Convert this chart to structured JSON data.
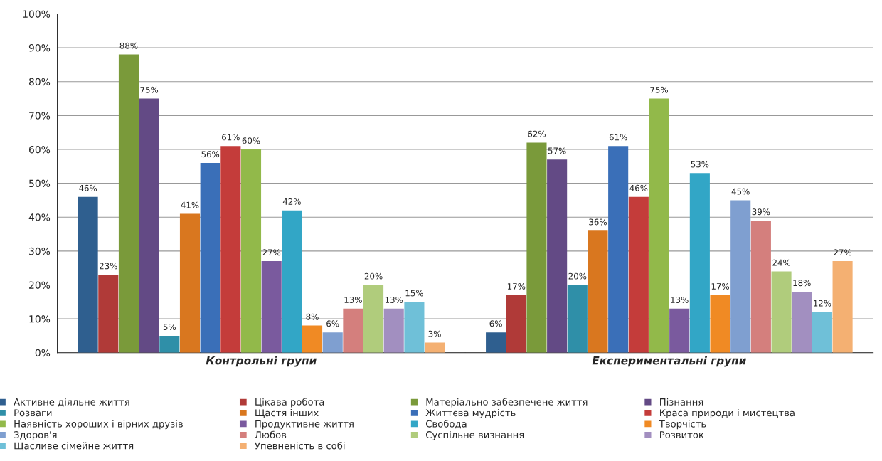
{
  "chart_data": {
    "type": "bar",
    "categories": [
      "Контрольні групи",
      "Експериментальні групи"
    ],
    "series": [
      {
        "name": "Активне діяльне життя",
        "color": "#2f5f8f",
        "values": [
          46,
          6
        ],
        "value_labels": [
          "46%",
          "6%"
        ]
      },
      {
        "name": "Цікава робота",
        "color": "#b03a38",
        "values": [
          23,
          17
        ],
        "value_labels": [
          "23%",
          "17%"
        ]
      },
      {
        "name": "Матеріально забезпечене життя",
        "color": "#7a9a3a",
        "values": [
          88,
          62
        ],
        "value_labels": [
          "88%",
          "62%"
        ]
      },
      {
        "name": "Пізнання",
        "color": "#634a85",
        "values": [
          75,
          57
        ],
        "value_labels": [
          "75%",
          "57%"
        ]
      },
      {
        "name": "Розваги",
        "color": "#2f8fa8",
        "values": [
          5,
          20
        ],
        "value_labels": [
          "5%",
          "20%"
        ]
      },
      {
        "name": "Щастя інших",
        "color": "#d9771f",
        "values": [
          41,
          36
        ],
        "value_labels": [
          "41%",
          "36%"
        ]
      },
      {
        "name": "Життєва мудрість",
        "color": "#3a6fb8",
        "values": [
          56,
          61
        ],
        "value_labels": [
          "56%",
          "61%"
        ]
      },
      {
        "name": "Краса природи і мистецтва",
        "color": "#c43c3a",
        "values": [
          61,
          46
        ],
        "value_labels": [
          "61%",
          "46%"
        ]
      },
      {
        "name": "Наявність хороших і вірних друзів",
        "color": "#92b94a",
        "values": [
          60,
          75
        ],
        "value_labels": [
          "60%",
          "75%"
        ]
      },
      {
        "name": "Продуктивне життя",
        "color": "#7a5a9e",
        "values": [
          27,
          13
        ],
        "value_labels": [
          "27%",
          "13%"
        ]
      },
      {
        "name": "Свобода",
        "color": "#32a6c6",
        "values": [
          42,
          53
        ],
        "value_labels": [
          "42%",
          "53%"
        ]
      },
      {
        "name": "Творчість",
        "color": "#f08a24",
        "values": [
          8,
          17
        ],
        "value_labels": [
          "8%",
          "17%"
        ]
      },
      {
        "name": "Здоров'я",
        "color": "#7f9fd0",
        "values": [
          6,
          45
        ],
        "value_labels": [
          "6%",
          "45%"
        ]
      },
      {
        "name": "Любов",
        "color": "#d47f7d",
        "values": [
          13,
          39
        ],
        "value_labels": [
          "13%",
          "39%"
        ]
      },
      {
        "name": "Суспільне визнання",
        "color": "#b0cc7c",
        "values": [
          20,
          24
        ],
        "value_labels": [
          "20%",
          "24%"
        ]
      },
      {
        "name": "Розвиток",
        "color": "#a28fc0",
        "values": [
          13,
          18
        ],
        "value_labels": [
          "13%",
          "18%"
        ]
      },
      {
        "name": "Щасливе сімейне життя",
        "color": "#6fc0d8",
        "values": [
          15,
          12
        ],
        "value_labels": [
          "15%",
          "12%"
        ]
      },
      {
        "name": "Упевненість в собі",
        "color": "#f4b072",
        "values": [
          3,
          27
        ],
        "value_labels": [
          "3%",
          "27%"
        ]
      }
    ],
    "ylim": [
      0,
      100
    ],
    "yticks": [
      {
        "value": 0,
        "label": "0%"
      },
      {
        "value": 10,
        "label": "10%"
      },
      {
        "value": 20,
        "label": "20%"
      },
      {
        "value": 30,
        "label": "30%"
      },
      {
        "value": 40,
        "label": "40%"
      },
      {
        "value": 50,
        "label": "50%"
      },
      {
        "value": 60,
        "label": "60%"
      },
      {
        "value": 70,
        "label": "70%"
      },
      {
        "value": 80,
        "label": "80%"
      },
      {
        "value": 90,
        "label": "90%"
      },
      {
        "value": 100,
        "label": "100%"
      }
    ],
    "grid": "y",
    "legend": "bottom"
  }
}
